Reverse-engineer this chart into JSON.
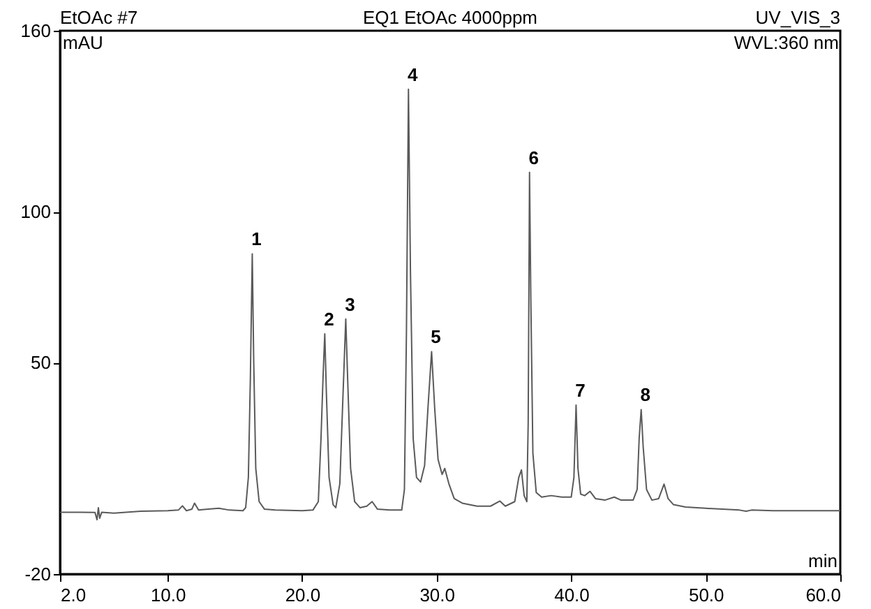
{
  "chart_data": {
    "type": "line",
    "title": "EQ1 EtOAc 4000ppm",
    "xlabel": "min",
    "ylabel": "mAU",
    "annotations": [
      "EtOAc #7",
      "UV_VIS_3",
      "WVL:360 nm",
      {
        "text": "1",
        "x": 16.29,
        "y": 86.1
      },
      {
        "text": "2",
        "x": 21.68,
        "y": 59.6
      },
      {
        "text": "3",
        "x": 23.24,
        "y": 64.5
      },
      {
        "text": "4",
        "x": 27.9,
        "y": 140.6
      },
      {
        "text": "5",
        "x": 29.62,
        "y": 53.7
      },
      {
        "text": "6",
        "x": 36.9,
        "y": 113.1
      },
      {
        "text": "7",
        "x": 40.36,
        "y": 36.0
      },
      {
        "text": "8",
        "x": 45.2,
        "y": 34.5
      }
    ],
    "x": [
      2.0,
      3.5,
      4.6,
      4.75,
      4.85,
      4.95,
      5.1,
      6,
      8,
      10,
      10.8,
      11.1,
      11.4,
      11.8,
      12.0,
      12.3,
      13.0,
      13.8,
      14.6,
      15.6,
      15.8,
      16.0,
      16.15,
      16.29,
      16.4,
      16.55,
      16.8,
      17.2,
      18,
      20,
      20.8,
      21.2,
      21.4,
      21.55,
      21.68,
      21.8,
      22.0,
      22.3,
      22.5,
      22.8,
      23.0,
      23.24,
      23.4,
      23.6,
      23.9,
      24.3,
      24.8,
      25.2,
      25.6,
      26.5,
      27.4,
      27.6,
      27.75,
      27.9,
      28.05,
      28.25,
      28.5,
      28.8,
      29.1,
      29.35,
      29.62,
      29.85,
      30.1,
      30.4,
      30.6,
      30.9,
      31.3,
      31.9,
      33,
      34,
      34.7,
      35.1,
      35.8,
      36.1,
      36.3,
      36.5,
      36.7,
      36.8,
      36.9,
      37.0,
      37.15,
      37.4,
      37.8,
      38.5,
      39.3,
      40.0,
      40.2,
      40.36,
      40.5,
      40.7,
      41.0,
      41.4,
      41.8,
      42.5,
      43.2,
      43.7,
      44.6,
      44.9,
      45.05,
      45.2,
      45.35,
      45.6,
      46.0,
      46.5,
      46.9,
      47.2,
      47.6,
      48.5,
      50,
      52.5,
      53,
      53.4,
      55,
      58,
      60
    ],
    "series": [
      {
        "color": "#5a5a5a",
        "values": [
          0.5,
          0.5,
          0.4,
          -2,
          2,
          -1.5,
          0.5,
          0.2,
          0.8,
          1.0,
          1.2,
          2.6,
          1.0,
          1.5,
          3.5,
          1.2,
          1.5,
          1.8,
          1.2,
          1.0,
          2,
          12,
          45,
          86.1,
          50,
          15,
          4,
          1.5,
          1.2,
          1.0,
          1.2,
          4,
          25,
          45,
          59.6,
          40,
          12,
          3,
          2,
          10,
          35,
          64.5,
          42,
          15,
          4,
          2,
          2.5,
          4,
          1.5,
          1.2,
          1.2,
          8,
          60,
          140.6,
          80,
          25,
          12,
          10.5,
          16,
          35,
          53.7,
          35,
          18,
          13,
          15,
          10,
          5,
          3.5,
          2.5,
          2.5,
          4.2,
          2.5,
          4,
          12,
          14.5,
          6,
          4,
          30,
          113.1,
          70,
          20,
          7,
          5.5,
          6,
          5.5,
          5.5,
          12,
          36.0,
          15,
          6.5,
          6,
          7.4,
          5,
          4.5,
          5.5,
          4.5,
          4.5,
          8,
          25,
          34.5,
          22,
          8,
          4.5,
          5,
          9.8,
          5,
          3,
          2.2,
          1.8,
          1.2,
          0.8,
          1.2,
          1.0,
          1.0,
          1.0
        ]
      }
    ],
    "xlim": [
      2,
      60
    ],
    "ylim": [
      -20,
      160
    ],
    "xticks": [
      {
        "value": 2,
        "label": "2.0"
      },
      {
        "value": 10,
        "label": "10.0"
      },
      {
        "value": 20,
        "label": "20.0"
      },
      {
        "value": 30,
        "label": "30.0"
      },
      {
        "value": 40,
        "label": "40.0"
      },
      {
        "value": 50,
        "label": "50.0"
      },
      {
        "value": 60,
        "label": "60.0"
      }
    ],
    "yticks": [
      -20,
      50,
      100,
      160
    ]
  }
}
